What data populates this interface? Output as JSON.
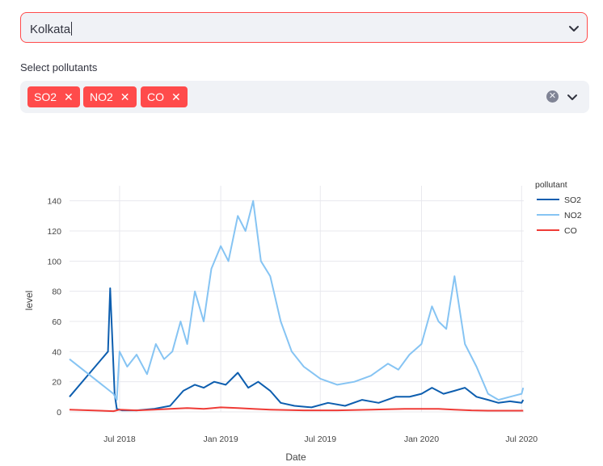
{
  "city_select": {
    "value": "Kolkata"
  },
  "pollutant_select": {
    "label": "Select pollutants",
    "tags": [
      "SO2",
      "NO2",
      "CO"
    ]
  },
  "colors": {
    "accent": "#ff4b4b",
    "SO2": "#0d5eaf",
    "NO2": "#86c4f3",
    "CO": "#ef3b36"
  },
  "chart_data": {
    "type": "line",
    "xlabel": "Date",
    "ylabel": "level",
    "ylim": [
      0,
      150
    ],
    "xlim": [
      "2018-04-01",
      "2020-07-05"
    ],
    "y_ticks": [
      0,
      20,
      40,
      60,
      80,
      100,
      120,
      140
    ],
    "x_ticks": [
      "Jul 2018",
      "Jan 2019",
      "Jul 2019",
      "Jan 2020",
      "Jul 2020"
    ],
    "x_tick_dates": [
      "2018-07-01",
      "2019-01-01",
      "2019-07-01",
      "2020-01-01",
      "2020-07-01"
    ],
    "grid": true,
    "legend": {
      "title": "pollutant",
      "position": "right"
    },
    "series": [
      {
        "name": "SO2",
        "x": [
          "2018-04-01",
          "2018-06-10",
          "2018-06-14",
          "2018-06-22",
          "2018-06-26",
          "2018-07-05",
          "2018-08-01",
          "2018-09-01",
          "2018-10-01",
          "2018-10-25",
          "2018-11-15",
          "2018-12-01",
          "2018-12-20",
          "2019-01-10",
          "2019-02-01",
          "2019-02-20",
          "2019-03-10",
          "2019-04-01",
          "2019-04-20",
          "2019-05-15",
          "2019-06-15",
          "2019-07-15",
          "2019-08-15",
          "2019-09-15",
          "2019-10-15",
          "2019-11-15",
          "2019-12-10",
          "2020-01-01",
          "2020-01-20",
          "2020-02-10",
          "2020-03-01",
          "2020-03-20",
          "2020-04-10",
          "2020-05-01",
          "2020-05-20",
          "2020-06-10",
          "2020-07-01",
          "2020-07-04"
        ],
        "y": [
          10,
          40,
          82,
          12,
          2,
          1,
          1,
          2,
          4,
          14,
          18,
          16,
          20,
          18,
          26,
          16,
          20,
          14,
          6,
          4,
          3,
          6,
          4,
          8,
          6,
          10,
          10,
          12,
          16,
          12,
          14,
          16,
          10,
          8,
          6,
          7,
          6,
          8
        ]
      },
      {
        "name": "NO2",
        "x": [
          "2018-04-01",
          "2018-06-20",
          "2018-06-26",
          "2018-07-01",
          "2018-07-15",
          "2018-08-01",
          "2018-08-20",
          "2018-09-05",
          "2018-09-20",
          "2018-10-05",
          "2018-10-20",
          "2018-11-01",
          "2018-11-15",
          "2018-12-01",
          "2018-12-15",
          "2019-01-01",
          "2019-01-15",
          "2019-02-01",
          "2019-02-15",
          "2019-03-01",
          "2019-03-15",
          "2019-04-01",
          "2019-04-20",
          "2019-05-10",
          "2019-06-01",
          "2019-07-01",
          "2019-08-01",
          "2019-09-01",
          "2019-10-01",
          "2019-11-01",
          "2019-11-20",
          "2019-12-10",
          "2020-01-01",
          "2020-01-20",
          "2020-02-01",
          "2020-02-15",
          "2020-03-01",
          "2020-03-20",
          "2020-04-10",
          "2020-05-01",
          "2020-05-20",
          "2020-06-10",
          "2020-07-01",
          "2020-07-04"
        ],
        "y": [
          35,
          12,
          8,
          40,
          30,
          38,
          25,
          45,
          35,
          40,
          60,
          45,
          80,
          60,
          95,
          110,
          100,
          130,
          120,
          140,
          100,
          90,
          60,
          40,
          30,
          22,
          18,
          20,
          24,
          32,
          28,
          38,
          45,
          70,
          60,
          55,
          90,
          45,
          30,
          12,
          8,
          10,
          12,
          16
        ]
      },
      {
        "name": "CO",
        "x": [
          "2018-04-01",
          "2018-06-20",
          "2018-07-01",
          "2018-08-01",
          "2018-09-01",
          "2018-10-01",
          "2018-11-01",
          "2018-12-01",
          "2019-01-01",
          "2019-02-01",
          "2019-03-01",
          "2019-04-01",
          "2019-06-01",
          "2019-08-01",
          "2019-10-01",
          "2019-12-01",
          "2020-01-01",
          "2020-02-01",
          "2020-03-01",
          "2020-04-01",
          "2020-05-01",
          "2020-06-01",
          "2020-07-04"
        ],
        "y": [
          1.5,
          0.5,
          1.5,
          1,
          1.5,
          2,
          2.5,
          2,
          3,
          2.5,
          2,
          1.5,
          1,
          1,
          1.5,
          2,
          2,
          2,
          1.5,
          1,
          0.8,
          0.8,
          0.8
        ]
      }
    ]
  }
}
